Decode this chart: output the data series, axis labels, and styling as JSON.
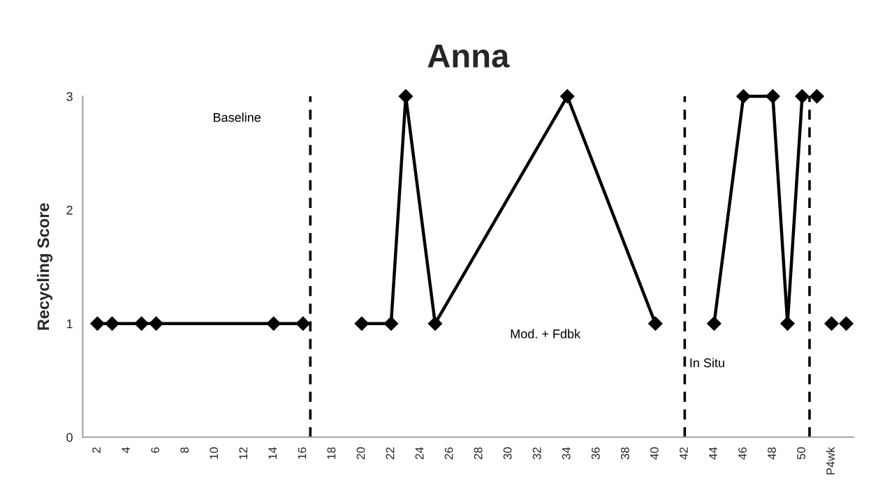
{
  "chart_data": {
    "type": "line",
    "title": "Anna",
    "ylabel": "Recycling Score",
    "series": [
      {
        "color": "#000000",
        "x": [
          2,
          3,
          5,
          6,
          14,
          16
        ],
        "values": [
          1,
          1,
          1,
          1,
          1,
          1
        ]
      },
      {
        "color": "#000000",
        "x": [
          20,
          22,
          23,
          25,
          34,
          40
        ],
        "values": [
          1,
          1,
          3,
          1,
          3,
          1
        ]
      },
      {
        "color": "#000000",
        "x": [
          44,
          46,
          48,
          49,
          50
        ],
        "values": [
          1,
          3,
          3,
          1,
          3
        ]
      },
      {
        "color": "#000000",
        "x": [
          51
        ],
        "values": [
          3
        ]
      },
      {
        "color": "#000000",
        "x": [
          52
        ],
        "values": [
          1
        ]
      },
      {
        "color": "#000000",
        "x": [
          53
        ],
        "values": [
          1
        ]
      }
    ],
    "xlim": [
      1,
      53.5
    ],
    "xticks": [
      2,
      4,
      6,
      8,
      10,
      12,
      14,
      16,
      18,
      20,
      22,
      24,
      26,
      28,
      30,
      32,
      34,
      36,
      38,
      40,
      42,
      44,
      46,
      48,
      50,
      {
        "value": 52,
        "label": "P4wk"
      }
    ],
    "ylim": [
      0,
      3
    ],
    "yticks": [
      0,
      1,
      2,
      3
    ],
    "ref_lines": [
      {
        "axis": "x",
        "value": 16.5,
        "color": "#000000",
        "line_style": "dashed"
      },
      {
        "axis": "x",
        "value": 42,
        "color": "#000000",
        "line_style": "dashed"
      },
      {
        "axis": "x",
        "value": 50.5,
        "color": "#000000",
        "line_style": "dashed"
      }
    ],
    "annotations": [
      "Baseline",
      "Mod. + Fdbk",
      "In Situ"
    ],
    "grid": false,
    "marker": "diamond",
    "line_style": "solid",
    "legend": false
  }
}
